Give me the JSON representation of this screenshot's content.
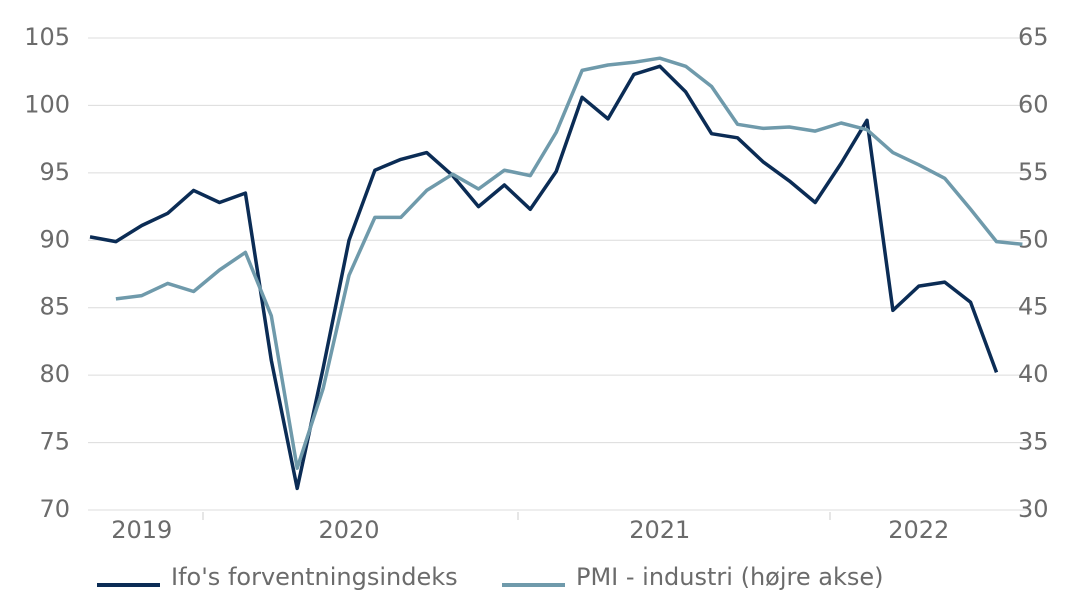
{
  "chart_data": {
    "type": "line",
    "categories": [
      null,
      null,
      "2019",
      null,
      null,
      null,
      null,
      null,
      null,
      null,
      "2020",
      null,
      null,
      null,
      null,
      null,
      null,
      null,
      null,
      null,
      null,
      null,
      "2021",
      null,
      null,
      null,
      null,
      null,
      null,
      null,
      null,
      null,
      "2022",
      null,
      null,
      null,
      null
    ],
    "series": [
      {
        "name": "Ifo's forventningsindeks",
        "color": "#0b2c55",
        "axis": "y",
        "values": [
          90.25,
          89.9,
          91.1,
          92.0,
          93.7,
          92.8,
          93.5,
          81.1,
          71.6,
          80.5,
          90.0,
          95.2,
          96.0,
          96.5,
          94.8,
          92.5,
          94.1,
          92.3,
          95.1,
          100.6,
          99.0,
          102.3,
          102.9,
          101.0,
          97.9,
          97.6,
          95.8,
          94.4,
          92.8,
          95.7,
          98.9,
          84.8,
          86.6,
          86.9,
          85.4,
          80.2,
          null
        ]
      },
      {
        "name": "PMI - industri (højre akse)",
        "color": "#6f9aab",
        "axis": "y2",
        "values": [
          null,
          45.65,
          45.9,
          46.8,
          46.2,
          47.8,
          49.1,
          44.4,
          33.1,
          39.0,
          47.4,
          51.7,
          51.7,
          53.7,
          54.9,
          53.8,
          55.2,
          54.8,
          58.0,
          62.6,
          63.0,
          63.2,
          63.5,
          62.9,
          61.4,
          58.6,
          58.3,
          58.4,
          58.1,
          58.7,
          58.2,
          56.5,
          55.6,
          54.6,
          52.3,
          49.9,
          49.7
        ]
      }
    ],
    "ylim": [
      70,
      105
    ],
    "yticks": [
      70,
      75,
      80,
      85,
      90,
      95,
      100,
      105
    ],
    "y2lim": [
      30,
      65
    ],
    "y2ticks": [
      30,
      35,
      40,
      45,
      50,
      55,
      60,
      65
    ],
    "grid": true,
    "legend": "bottom"
  }
}
